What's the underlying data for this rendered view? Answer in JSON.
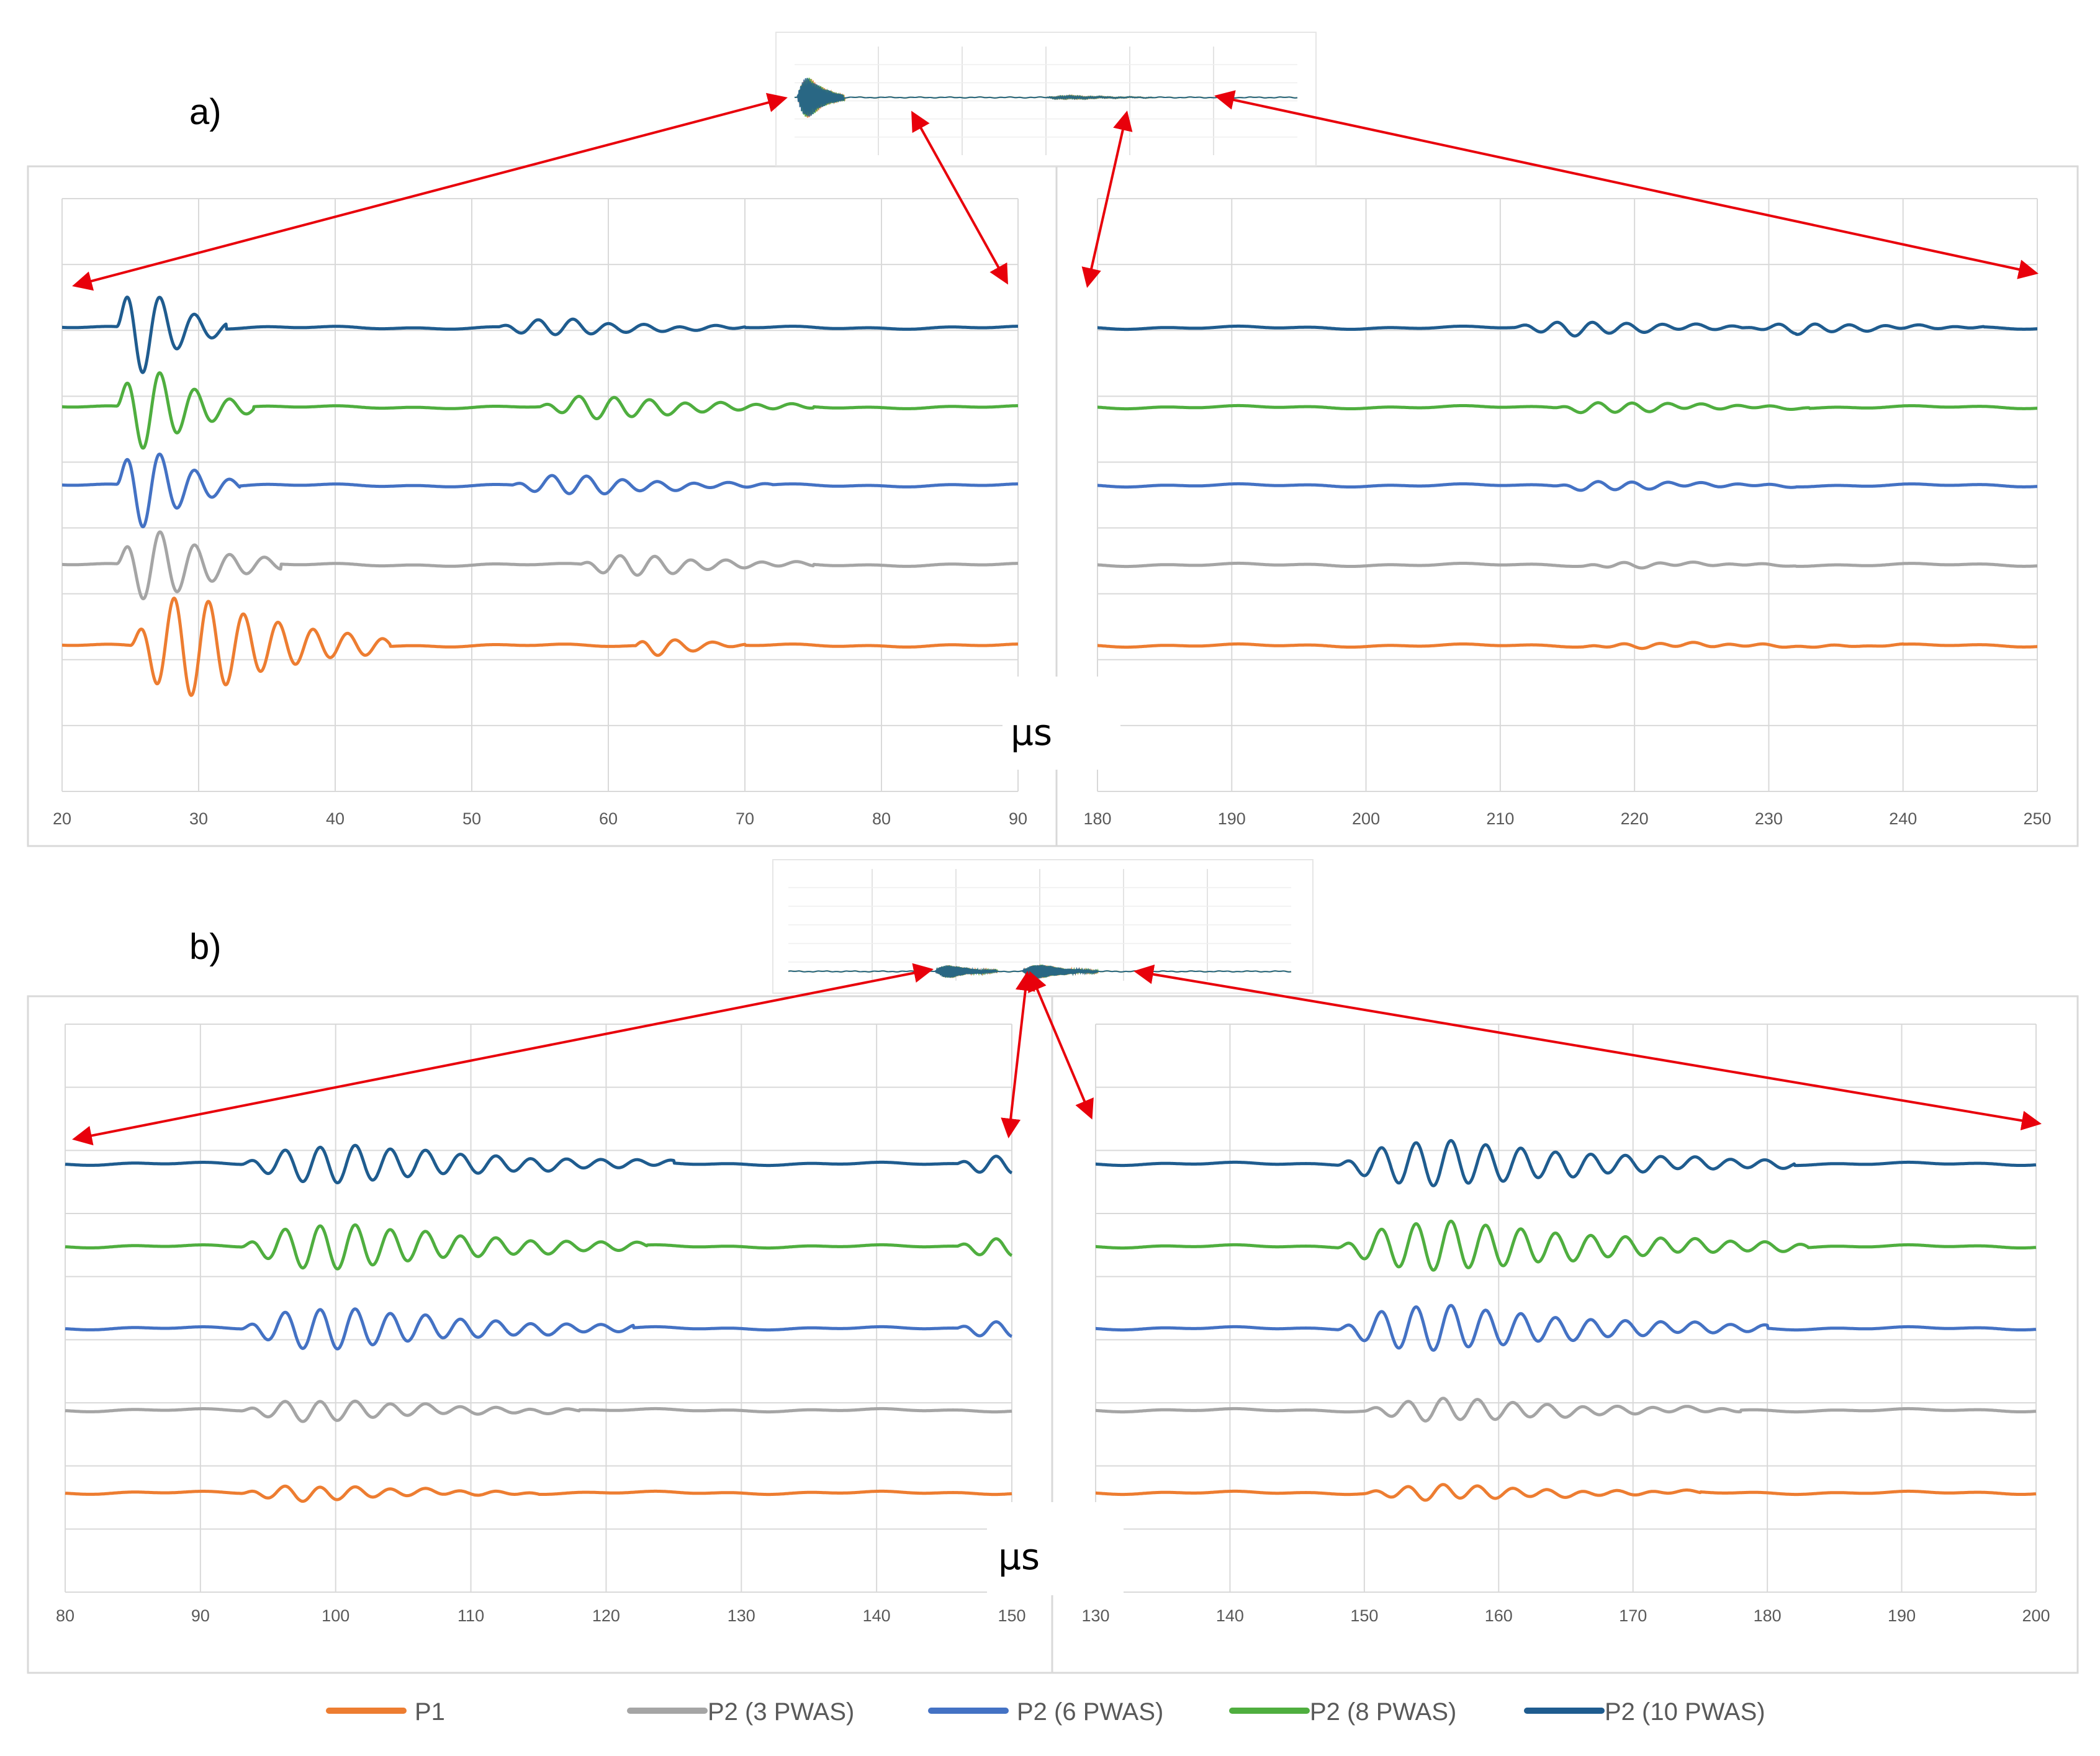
{
  "figure": {
    "part_labels": [
      "a)",
      "b)"
    ],
    "unit_label": "μs",
    "colors": {
      "P1": "#ED7D31",
      "P2_3": "#A5A5A5",
      "P2_6": "#4472C4",
      "P2_8": "#4FAE3F",
      "P2_10": "#1F5C8F",
      "arrow": "#E8000B",
      "grid": "#D9D9D9"
    }
  },
  "legend": [
    {
      "key": "P1",
      "label": "P1",
      "color": "#ED7D31"
    },
    {
      "key": "P2_3",
      "label": "P2 (3 PWAS)",
      "color": "#A5A5A5"
    },
    {
      "key": "P2_6",
      "label": "P2 (6 PWAS)",
      "color": "#4472C4"
    },
    {
      "key": "P2_8",
      "label": "P2 (8 PWAS)",
      "color": "#4FAE3F"
    },
    {
      "key": "P2_10",
      "label": "P2 (10 PWAS)",
      "color": "#1F5C8F"
    }
  ],
  "chart_data": [
    {
      "id": "a-left",
      "panel": "a)",
      "type": "line",
      "xlabel": "μs",
      "xlim": [
        20,
        90
      ],
      "xticks": [
        20,
        30,
        40,
        50,
        60,
        70,
        80,
        90
      ],
      "grid": true,
      "series": [
        {
          "name": "P2 (10 PWAS)",
          "color": "#1F5C8F",
          "packets": [
            {
              "start": 24,
              "decay": 32,
              "amp": 1.2,
              "period": 2.55
            },
            {
              "start": 52,
              "decay": 70,
              "amp": 0.22,
              "period": 2.6
            }
          ]
        },
        {
          "name": "P2 (8 PWAS)",
          "color": "#4FAE3F",
          "packets": [
            {
              "start": 24,
              "decay": 34,
              "amp": 1.1,
              "period": 2.55
            },
            {
              "start": 55,
              "decay": 75,
              "amp": 0.3,
              "period": 2.6
            }
          ]
        },
        {
          "name": "P2 (6 PWAS)",
          "color": "#4472C4",
          "packets": [
            {
              "start": 24,
              "decay": 33,
              "amp": 1.1,
              "period": 2.55
            },
            {
              "start": 53,
              "decay": 72,
              "amp": 0.26,
              "period": 2.6
            }
          ]
        },
        {
          "name": "P2 (3 PWAS)",
          "color": "#A5A5A5",
          "packets": [
            {
              "start": 24,
              "decay": 36,
              "amp": 0.95,
              "period": 2.55
            },
            {
              "start": 58,
              "decay": 75,
              "amp": 0.28,
              "period": 2.6
            }
          ]
        },
        {
          "name": "P1",
          "color": "#ED7D31",
          "packets": [
            {
              "start": 25,
              "decay": 44,
              "amp": 1.35,
              "period": 2.55
            },
            {
              "start": 62,
              "decay": 70,
              "amp": 0.25,
              "period": 2.7
            }
          ]
        }
      ]
    },
    {
      "id": "a-right",
      "panel": "a)",
      "type": "line",
      "xlabel": "μs",
      "xlim": [
        180,
        250
      ],
      "xticks": [
        180,
        190,
        200,
        210,
        220,
        230,
        240,
        250
      ],
      "grid": true,
      "series": [
        {
          "name": "P2 (10 PWAS)",
          "color": "#1F5C8F",
          "packets": [
            {
              "start": 211,
              "decay": 232,
              "amp": 0.18,
              "period": 2.6
            },
            {
              "start": 228,
              "decay": 246,
              "amp": 0.14,
              "period": 2.6
            }
          ]
        },
        {
          "name": "P2 (8 PWAS)",
          "color": "#4FAE3F",
          "packets": [
            {
              "start": 214,
              "decay": 233,
              "amp": 0.14,
              "period": 2.6
            }
          ]
        },
        {
          "name": "P2 (6 PWAS)",
          "color": "#4472C4",
          "packets": [
            {
              "start": 214,
              "decay": 232,
              "amp": 0.12,
              "period": 2.6
            }
          ]
        },
        {
          "name": "P2 (3 PWAS)",
          "color": "#A5A5A5",
          "packets": [
            {
              "start": 216,
              "decay": 232,
              "amp": 0.07,
              "period": 2.6
            }
          ]
        },
        {
          "name": "P1",
          "color": "#ED7D31",
          "packets": [
            {
              "start": 216,
              "decay": 240,
              "amp": 0.06,
              "period": 2.6
            }
          ]
        }
      ]
    },
    {
      "id": "b-left",
      "panel": "b)",
      "type": "line",
      "xlabel": "μs",
      "xlim": [
        80,
        150
      ],
      "xticks": [
        80,
        90,
        100,
        110,
        120,
        130,
        140,
        150
      ],
      "grid": true,
      "series": [
        {
          "name": "P2 (10 PWAS)",
          "color": "#1F5C8F",
          "packets": [
            {
              "start": 93,
              "decay": 125,
              "amp": 0.5,
              "period": 2.6
            },
            {
              "start": 146,
              "decay": 160,
              "amp": 0.25,
              "period": 2.6
            }
          ]
        },
        {
          "name": "P2 (8 PWAS)",
          "color": "#4FAE3F",
          "packets": [
            {
              "start": 93,
              "decay": 123,
              "amp": 0.6,
              "period": 2.6
            },
            {
              "start": 146,
              "decay": 160,
              "amp": 0.25,
              "period": 2.6
            }
          ]
        },
        {
          "name": "P2 (6 PWAS)",
          "color": "#4472C4",
          "packets": [
            {
              "start": 93,
              "decay": 122,
              "amp": 0.55,
              "period": 2.6
            },
            {
              "start": 146,
              "decay": 160,
              "amp": 0.22,
              "period": 2.6
            }
          ]
        },
        {
          "name": "P2 (3 PWAS)",
          "color": "#A5A5A5",
          "packets": [
            {
              "start": 93,
              "decay": 118,
              "amp": 0.28,
              "period": 2.6
            }
          ]
        },
        {
          "name": "P1",
          "color": "#ED7D31",
          "packets": [
            {
              "start": 93,
              "decay": 115,
              "amp": 0.2,
              "period": 2.6
            }
          ]
        }
      ]
    },
    {
      "id": "b-right",
      "panel": "b)",
      "type": "line",
      "xlabel": "μs",
      "xlim": [
        130,
        200
      ],
      "xticks": [
        130,
        140,
        150,
        160,
        170,
        180,
        190,
        200
      ],
      "grid": true,
      "series": [
        {
          "name": "P2 (10 PWAS)",
          "color": "#1F5C8F",
          "packets": [
            {
              "start": 148,
              "decay": 182,
              "amp": 0.6,
              "period": 2.6
            }
          ]
        },
        {
          "name": "P2 (8 PWAS)",
          "color": "#4FAE3F",
          "packets": [
            {
              "start": 148,
              "decay": 183,
              "amp": 0.65,
              "period": 2.6
            }
          ]
        },
        {
          "name": "P2 (6 PWAS)",
          "color": "#4472C4",
          "packets": [
            {
              "start": 148,
              "decay": 180,
              "amp": 0.6,
              "period": 2.6
            }
          ]
        },
        {
          "name": "P2 (3 PWAS)",
          "color": "#A5A5A5",
          "packets": [
            {
              "start": 150,
              "decay": 178,
              "amp": 0.3,
              "period": 2.6
            }
          ]
        },
        {
          "name": "P1",
          "color": "#ED7D31",
          "packets": [
            {
              "start": 150,
              "decay": 175,
              "amp": 0.2,
              "period": 2.6
            }
          ]
        }
      ]
    }
  ]
}
